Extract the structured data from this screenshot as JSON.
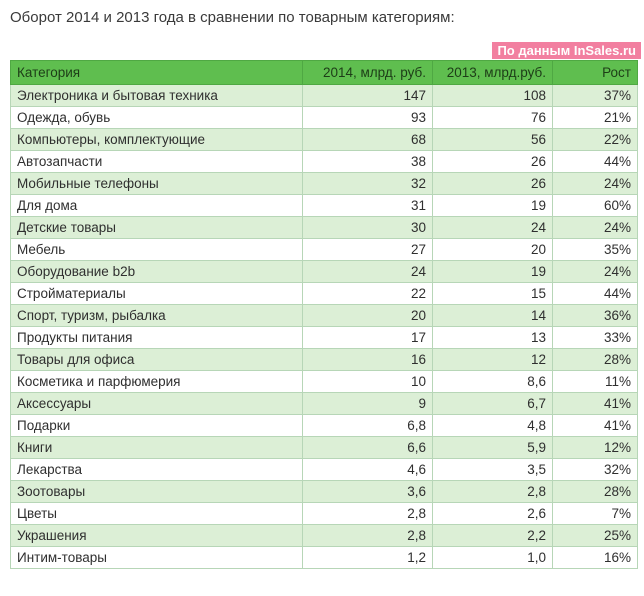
{
  "chart_data": {
    "type": "table",
    "title": "Оборот 2014 и 2013 года в сравнении по товарным категориям:",
    "source_note": "По данным InSales.ru",
    "columns": [
      "Категория",
      "2014, млрд. руб.",
      "2013, млрд.руб.",
      "Рост"
    ],
    "rows": [
      {
        "category": "Электроника и бытовая техника",
        "v2014": "147",
        "v2013": "108",
        "growth": "37%"
      },
      {
        "category": "Одежда, обувь",
        "v2014": "93",
        "v2013": "76",
        "growth": "21%"
      },
      {
        "category": "Компьютеры, комплектующие",
        "v2014": "68",
        "v2013": "56",
        "growth": "22%"
      },
      {
        "category": "Автозапчасти",
        "v2014": "38",
        "v2013": "26",
        "growth": "44%"
      },
      {
        "category": "Мобильные телефоны",
        "v2014": "32",
        "v2013": "26",
        "growth": "24%"
      },
      {
        "category": "Для дома",
        "v2014": "31",
        "v2013": "19",
        "growth": "60%"
      },
      {
        "category": "Детские товары",
        "v2014": "30",
        "v2013": "24",
        "growth": "24%"
      },
      {
        "category": "Мебель",
        "v2014": "27",
        "v2013": "20",
        "growth": "35%"
      },
      {
        "category": "Оборудование b2b",
        "v2014": "24",
        "v2013": "19",
        "growth": "24%"
      },
      {
        "category": "Стройматериалы",
        "v2014": "22",
        "v2013": "15",
        "growth": "44%"
      },
      {
        "category": "Спорт, туризм, рыбалка",
        "v2014": "20",
        "v2013": "14",
        "growth": "36%"
      },
      {
        "category": "Продукты питания",
        "v2014": "17",
        "v2013": "13",
        "growth": "33%"
      },
      {
        "category": "Товары для офиса",
        "v2014": "16",
        "v2013": "12",
        "growth": "28%"
      },
      {
        "category": "Косметика и парфюмерия",
        "v2014": "10",
        "v2013": "8,6",
        "growth": "11%"
      },
      {
        "category": "Аксессуары",
        "v2014": "9",
        "v2013": "6,7",
        "growth": "41%"
      },
      {
        "category": "Подарки",
        "v2014": "6,8",
        "v2013": "4,8",
        "growth": "41%"
      },
      {
        "category": "Книги",
        "v2014": "6,6",
        "v2013": "5,9",
        "growth": "12%"
      },
      {
        "category": "Лекарства",
        "v2014": "4,6",
        "v2013": "3,5",
        "growth": "32%"
      },
      {
        "category": "Зоотовары",
        "v2014": "3,6",
        "v2013": "2,8",
        "growth": "28%"
      },
      {
        "category": "Цветы",
        "v2014": "2,8",
        "v2013": "2,6",
        "growth": "7%"
      },
      {
        "category": "Украшения",
        "v2014": "2,8",
        "v2013": "2,2",
        "growth": "25%"
      },
      {
        "category": "Интим-товары",
        "v2014": "1,2",
        "v2013": "1,0",
        "growth": "16%"
      }
    ]
  },
  "colors": {
    "header_bg": "#5fbe4f",
    "row_stripe": "#dcefd6",
    "badge_bg": "#f27fa0"
  }
}
